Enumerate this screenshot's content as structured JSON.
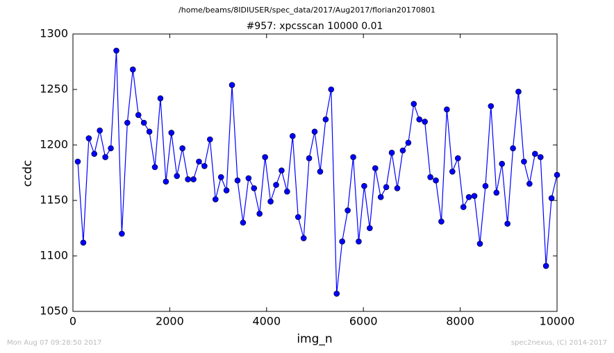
{
  "chart_data": {
    "type": "line",
    "subtitle": "/home/beams/8IDIUSER/spec_data/2017/Aug2017/florian20170801",
    "title": "#957: xpcsscan 10000 0.01",
    "x_label": "img_n",
    "y_label": "ccdc",
    "footnotes": [
      "Mon Aug 07 09:28:50 2017",
      "spec2nexus, (C) 2014-2017"
    ],
    "x": [
      100,
      214,
      328,
      441,
      555,
      669,
      783,
      897,
      1010,
      1124,
      1238,
      1352,
      1466,
      1579,
      1693,
      1807,
      1921,
      2034,
      2148,
      2262,
      2376,
      2490,
      2603,
      2717,
      2831,
      2945,
      3059,
      3172,
      3286,
      3400,
      3514,
      3628,
      3741,
      3855,
      3969,
      4083,
      4197,
      4310,
      4424,
      4538,
      4652,
      4766,
      4879,
      4993,
      5107,
      5221,
      5334,
      5448,
      5562,
      5676,
      5790,
      5903,
      6017,
      6131,
      6245,
      6359,
      6472,
      6586,
      6700,
      6814,
      6928,
      7041,
      7155,
      7269,
      7383,
      7497,
      7610,
      7724,
      7838,
      7952,
      8066,
      8179,
      8293,
      8407,
      8521,
      8634,
      8748,
      8862,
      8976,
      9090,
      9203,
      9317,
      9431,
      9545,
      9659,
      9772,
      9886,
      10000
    ],
    "series": [
      {
        "color": "#0000ff",
        "values": [
          1185,
          1112,
          1206,
          1192,
          1213,
          1189,
          1197,
          1285,
          1120,
          1220,
          1268,
          1227,
          1220,
          1212,
          1180,
          1242,
          1167,
          1211,
          1172,
          1197,
          1169,
          1169,
          1185,
          1181,
          1205,
          1151,
          1171,
          1159,
          1254,
          1168,
          1130,
          1170,
          1161,
          1138,
          1189,
          1149,
          1164,
          1177,
          1158,
          1208,
          1135,
          1116,
          1188,
          1212,
          1176,
          1223,
          1250,
          1066,
          1113,
          1141,
          1189,
          1113,
          1163,
          1125,
          1179,
          1153,
          1162,
          1193,
          1161,
          1195,
          1202,
          1237,
          1223,
          1221,
          1171,
          1168,
          1131,
          1232,
          1176,
          1188,
          1144,
          1153,
          1154,
          1111,
          1163,
          1235,
          1157,
          1183,
          1129,
          1197,
          1248,
          1185,
          1165,
          1192,
          1189,
          1091,
          1152,
          1173
        ]
      }
    ],
    "xlim": [
      0,
      10000
    ],
    "ylim": [
      1050,
      1300
    ],
    "xticks": [
      0,
      2000,
      4000,
      6000,
      8000,
      10000
    ],
    "yticks": [
      1050,
      1100,
      1150,
      1200,
      1250,
      1300
    ],
    "markers": true
  }
}
